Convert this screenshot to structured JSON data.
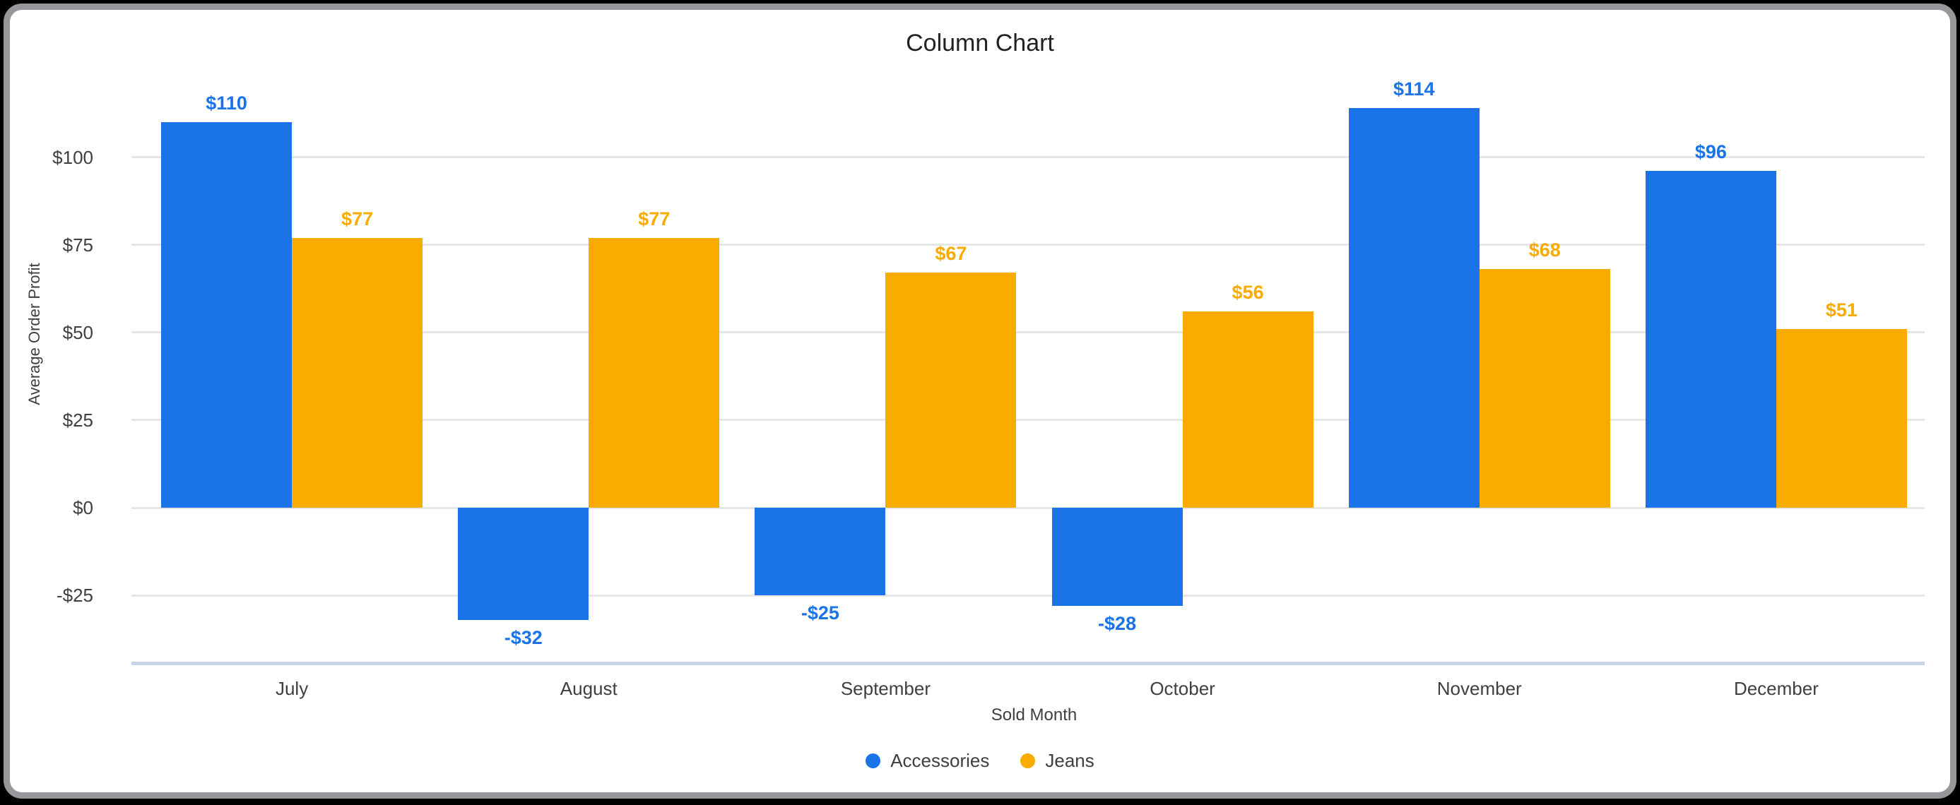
{
  "chart_data": {
    "type": "bar",
    "title": "Column Chart",
    "xlabel": "Sold Month",
    "ylabel": "Average Order Profit",
    "categories": [
      "July",
      "August",
      "September",
      "October",
      "November",
      "December"
    ],
    "series": [
      {
        "name": "Accessories",
        "color": "#1b73e8",
        "values": [
          110,
          -32,
          -25,
          -28,
          114,
          96
        ],
        "labels": [
          "$110",
          "-$32",
          "-$25",
          "-$28",
          "$114",
          "$96"
        ]
      },
      {
        "name": "Jeans",
        "color": "#f9ab00",
        "values": [
          77,
          77,
          67,
          56,
          68,
          51
        ],
        "labels": [
          "$77",
          "$77",
          "$67",
          "$56",
          "$68",
          "$51"
        ]
      }
    ],
    "y_ticks": [
      {
        "value": 100,
        "label": "$100"
      },
      {
        "value": 75,
        "label": "$75"
      },
      {
        "value": 50,
        "label": "$50"
      },
      {
        "value": 25,
        "label": "$25"
      },
      {
        "value": 0,
        "label": "$0"
      },
      {
        "value": -25,
        "label": "-$25"
      }
    ],
    "ylim": [
      -47,
      127
    ],
    "grid": true,
    "legend_position": "bottom",
    "colors": {
      "gridline": "#e6e6e6",
      "axis_line": "#c9d4e8",
      "title_text": "#202124",
      "axis_text": "#3c4043",
      "frame_border": "#97979b",
      "page_background": "#000000",
      "chart_background": "#ffffff"
    }
  }
}
